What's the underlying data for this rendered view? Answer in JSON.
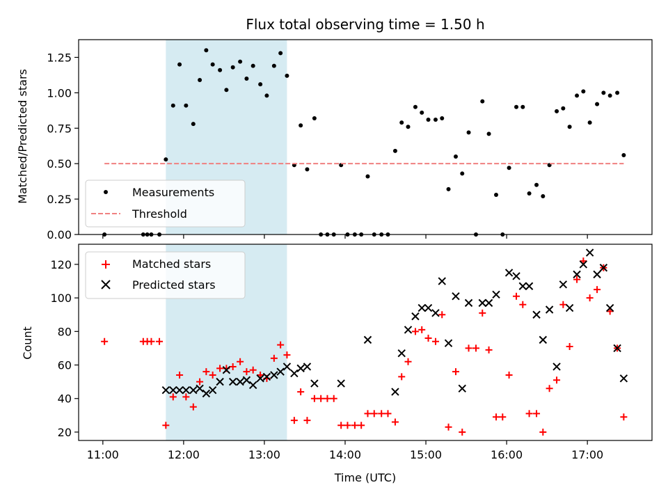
{
  "chart_data": [
    {
      "type": "scatter",
      "title": "Flux total observing time = 1.50 h",
      "ylabel": "Matched/Predicted stars",
      "ylim": [
        0,
        1.375
      ],
      "yticks": [
        "0.00",
        "0.25",
        "0.50",
        "0.75",
        "1.00",
        "1.25"
      ],
      "xlim": [
        10.7,
        17.8
      ],
      "grid": false,
      "legend_loc": "lower-left",
      "shaded_x_range": [
        11.78,
        13.28
      ],
      "shade_color": "#add8e6",
      "series": [
        {
          "name": "Measurements",
          "marker": "dot",
          "color": "#000000",
          "points": [
            [
              11.02,
              0.0
            ],
            [
              11.5,
              0.0
            ],
            [
              11.55,
              0.0
            ],
            [
              11.6,
              0.0
            ],
            [
              11.7,
              0.0
            ],
            [
              11.78,
              0.53
            ],
            [
              11.87,
              0.91
            ],
            [
              11.95,
              1.2
            ],
            [
              12.03,
              0.91
            ],
            [
              12.12,
              0.78
            ],
            [
              12.2,
              1.09
            ],
            [
              12.28,
              1.3
            ],
            [
              12.36,
              1.2
            ],
            [
              12.45,
              1.16
            ],
            [
              12.53,
              1.02
            ],
            [
              12.61,
              1.18
            ],
            [
              12.7,
              1.22
            ],
            [
              12.78,
              1.1
            ],
            [
              12.86,
              1.19
            ],
            [
              12.95,
              1.06
            ],
            [
              13.03,
              0.98
            ],
            [
              13.12,
              1.19
            ],
            [
              13.2,
              1.28
            ],
            [
              13.28,
              1.12
            ],
            [
              13.37,
              0.49
            ],
            [
              13.45,
              0.77
            ],
            [
              13.53,
              0.46
            ],
            [
              13.62,
              0.82
            ],
            [
              13.7,
              0.0
            ],
            [
              13.78,
              0.0
            ],
            [
              13.86,
              0.0
            ],
            [
              13.95,
              0.49
            ],
            [
              14.03,
              0.0
            ],
            [
              14.12,
              0.0
            ],
            [
              14.2,
              0.0
            ],
            [
              14.28,
              0.41
            ],
            [
              14.36,
              0.0
            ],
            [
              14.45,
              0.0
            ],
            [
              14.53,
              0.0
            ],
            [
              14.62,
              0.59
            ],
            [
              14.7,
              0.79
            ],
            [
              14.78,
              0.76
            ],
            [
              14.87,
              0.9
            ],
            [
              14.95,
              0.86
            ],
            [
              15.03,
              0.81
            ],
            [
              15.12,
              0.81
            ],
            [
              15.2,
              0.82
            ],
            [
              15.28,
              0.32
            ],
            [
              15.37,
              0.55
            ],
            [
              15.45,
              0.43
            ],
            [
              15.53,
              0.72
            ],
            [
              15.62,
              0.0
            ],
            [
              15.7,
              0.94
            ],
            [
              15.78,
              0.71
            ],
            [
              15.87,
              0.28
            ],
            [
              15.95,
              0.0
            ],
            [
              16.03,
              0.47
            ],
            [
              16.12,
              0.9
            ],
            [
              16.2,
              0.9
            ],
            [
              16.28,
              0.29
            ],
            [
              16.37,
              0.35
            ],
            [
              16.45,
              0.27
            ],
            [
              16.53,
              0.49
            ],
            [
              16.62,
              0.87
            ],
            [
              16.7,
              0.89
            ],
            [
              16.78,
              0.76
            ],
            [
              16.87,
              0.98
            ],
            [
              16.95,
              1.01
            ],
            [
              17.03,
              0.79
            ],
            [
              17.12,
              0.92
            ],
            [
              17.2,
              1.0
            ],
            [
              17.28,
              0.98
            ],
            [
              17.37,
              1.0
            ],
            [
              17.45,
              0.56
            ]
          ]
        },
        {
          "name": "Threshold",
          "marker": "dashed-line",
          "color": "#f08080",
          "x_range": [
            11.02,
            17.45
          ],
          "value": 0.5
        }
      ]
    },
    {
      "type": "scatter",
      "ylabel": "Count",
      "xlabel": "Time (UTC)",
      "ylim": [
        15,
        132
      ],
      "yticks": [
        "20",
        "40",
        "60",
        "80",
        "100",
        "120"
      ],
      "xlim": [
        10.7,
        17.8
      ],
      "xticks": [
        {
          "value": 11,
          "label": "11:00"
        },
        {
          "value": 12,
          "label": "12:00"
        },
        {
          "value": 13,
          "label": "13:00"
        },
        {
          "value": 14,
          "label": "14:00"
        },
        {
          "value": 15,
          "label": "15:00"
        },
        {
          "value": 16,
          "label": "16:00"
        },
        {
          "value": 17,
          "label": "17:00"
        }
      ],
      "grid": false,
      "legend_loc": "upper-left",
      "shaded_x_range": [
        11.78,
        13.28
      ],
      "shade_color": "#add8e6",
      "series": [
        {
          "name": "Matched stars",
          "marker": "plus",
          "color": "#ff0000",
          "points": [
            [
              11.02,
              74
            ],
            [
              11.5,
              74
            ],
            [
              11.55,
              74
            ],
            [
              11.6,
              74
            ],
            [
              11.7,
              74
            ],
            [
              11.78,
              24
            ],
            [
              11.87,
              41
            ],
            [
              11.95,
              54
            ],
            [
              12.03,
              41
            ],
            [
              12.12,
              35
            ],
            [
              12.2,
              50
            ],
            [
              12.28,
              56
            ],
            [
              12.36,
              54
            ],
            [
              12.45,
              58
            ],
            [
              12.53,
              58
            ],
            [
              12.61,
              59
            ],
            [
              12.7,
              62
            ],
            [
              12.78,
              56
            ],
            [
              12.86,
              57
            ],
            [
              12.95,
              54
            ],
            [
              13.03,
              52
            ],
            [
              13.12,
              64
            ],
            [
              13.2,
              72
            ],
            [
              13.28,
              66
            ],
            [
              13.37,
              27
            ],
            [
              13.45,
              44
            ],
            [
              13.53,
              27
            ],
            [
              13.62,
              40
            ],
            [
              13.7,
              40
            ],
            [
              13.78,
              40
            ],
            [
              13.86,
              40
            ],
            [
              13.95,
              24
            ],
            [
              14.03,
              24
            ],
            [
              14.12,
              24
            ],
            [
              14.2,
              24
            ],
            [
              14.28,
              31
            ],
            [
              14.36,
              31
            ],
            [
              14.45,
              31
            ],
            [
              14.53,
              31
            ],
            [
              14.62,
              26
            ],
            [
              14.7,
              53
            ],
            [
              14.78,
              62
            ],
            [
              14.87,
              80
            ],
            [
              14.95,
              81
            ],
            [
              15.03,
              76
            ],
            [
              15.12,
              74
            ],
            [
              15.2,
              90
            ],
            [
              15.28,
              23
            ],
            [
              15.37,
              56
            ],
            [
              15.45,
              20
            ],
            [
              15.53,
              70
            ],
            [
              15.62,
              70
            ],
            [
              15.7,
              91
            ],
            [
              15.78,
              69
            ],
            [
              15.87,
              29
            ],
            [
              15.95,
              29
            ],
            [
              16.03,
              54
            ],
            [
              16.12,
              101
            ],
            [
              16.2,
              96
            ],
            [
              16.28,
              31
            ],
            [
              16.37,
              31
            ],
            [
              16.45,
              20
            ],
            [
              16.53,
              46
            ],
            [
              16.62,
              51
            ],
            [
              16.7,
              96
            ],
            [
              16.78,
              71
            ],
            [
              16.87,
              111
            ],
            [
              16.95,
              122
            ],
            [
              17.03,
              100
            ],
            [
              17.12,
              105
            ],
            [
              17.2,
              118
            ],
            [
              17.28,
              92
            ],
            [
              17.37,
              70
            ],
            [
              17.45,
              29
            ]
          ]
        },
        {
          "name": "Predicted stars",
          "marker": "x",
          "color": "#000000",
          "points": [
            [
              11.78,
              45
            ],
            [
              11.87,
              45
            ],
            [
              11.95,
              45
            ],
            [
              12.03,
              45
            ],
            [
              12.12,
              45
            ],
            [
              12.2,
              46
            ],
            [
              12.28,
              43
            ],
            [
              12.36,
              45
            ],
            [
              12.45,
              50
            ],
            [
              12.53,
              57
            ],
            [
              12.61,
              50
            ],
            [
              12.7,
              50
            ],
            [
              12.78,
              51
            ],
            [
              12.86,
              48
            ],
            [
              12.95,
              52
            ],
            [
              13.03,
              53
            ],
            [
              13.12,
              54
            ],
            [
              13.2,
              56
            ],
            [
              13.28,
              59
            ],
            [
              13.37,
              55
            ],
            [
              13.45,
              58
            ],
            [
              13.53,
              59
            ],
            [
              13.62,
              49
            ],
            [
              13.95,
              49
            ],
            [
              14.28,
              75
            ],
            [
              14.62,
              44
            ],
            [
              14.7,
              67
            ],
            [
              14.78,
              81
            ],
            [
              14.87,
              89
            ],
            [
              14.95,
              94
            ],
            [
              15.03,
              94
            ],
            [
              15.12,
              91
            ],
            [
              15.2,
              110
            ],
            [
              15.28,
              73
            ],
            [
              15.37,
              101
            ],
            [
              15.45,
              46
            ],
            [
              15.53,
              97
            ],
            [
              15.7,
              97
            ],
            [
              15.78,
              97
            ],
            [
              15.87,
              102
            ],
            [
              16.03,
              115
            ],
            [
              16.12,
              113
            ],
            [
              16.2,
              107
            ],
            [
              16.28,
              107
            ],
            [
              16.37,
              90
            ],
            [
              16.45,
              75
            ],
            [
              16.53,
              93
            ],
            [
              16.62,
              59
            ],
            [
              16.7,
              108
            ],
            [
              16.78,
              94
            ],
            [
              16.87,
              114
            ],
            [
              16.95,
              120
            ],
            [
              17.03,
              127
            ],
            [
              17.12,
              114
            ],
            [
              17.2,
              118
            ],
            [
              17.28,
              94
            ],
            [
              17.37,
              70
            ],
            [
              17.45,
              52
            ]
          ]
        }
      ]
    }
  ]
}
